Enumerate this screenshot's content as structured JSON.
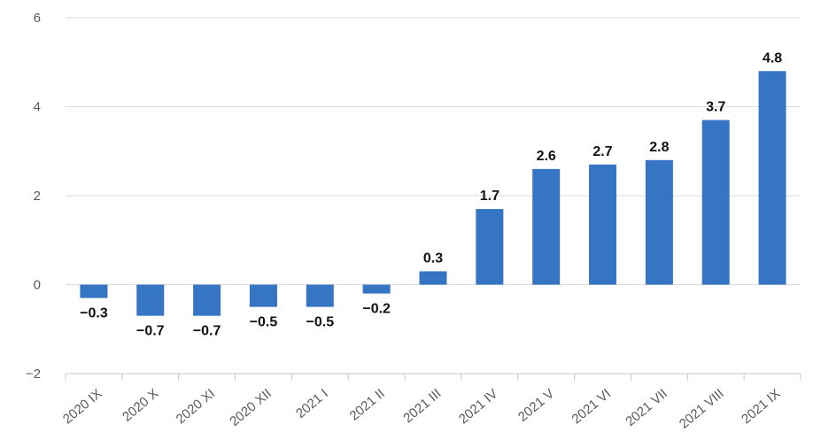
{
  "chart_data": {
    "type": "bar",
    "categories": [
      "2020 IX",
      "2020 X",
      "2020 XI",
      "2020 XII",
      "2021 I",
      "2021 II",
      "2021 III",
      "2021 IV",
      "2021 V",
      "2021 VI",
      "2021 VII",
      "2021 VIII",
      "2021 IX"
    ],
    "values": [
      -0.3,
      -0.7,
      -0.7,
      -0.5,
      -0.5,
      -0.2,
      0.3,
      1.7,
      2.6,
      2.7,
      2.8,
      3.7,
      4.8
    ],
    "data_labels": [
      "−0.3",
      "−0.7",
      "−0.7",
      "−0.5",
      "−0.5",
      "−0.2",
      "0.3",
      "1.7",
      "2.6",
      "2.7",
      "2.8",
      "3.7",
      "4.8"
    ],
    "ylim": [
      -2,
      6
    ],
    "yticks": [
      -2,
      0,
      2,
      4,
      6
    ],
    "ytick_labels": [
      "−2",
      "0",
      "2",
      "4",
      "6"
    ],
    "title": "",
    "xlabel": "",
    "ylabel": "",
    "grid": true,
    "legend": "none",
    "bar_color": "#3575c4"
  }
}
